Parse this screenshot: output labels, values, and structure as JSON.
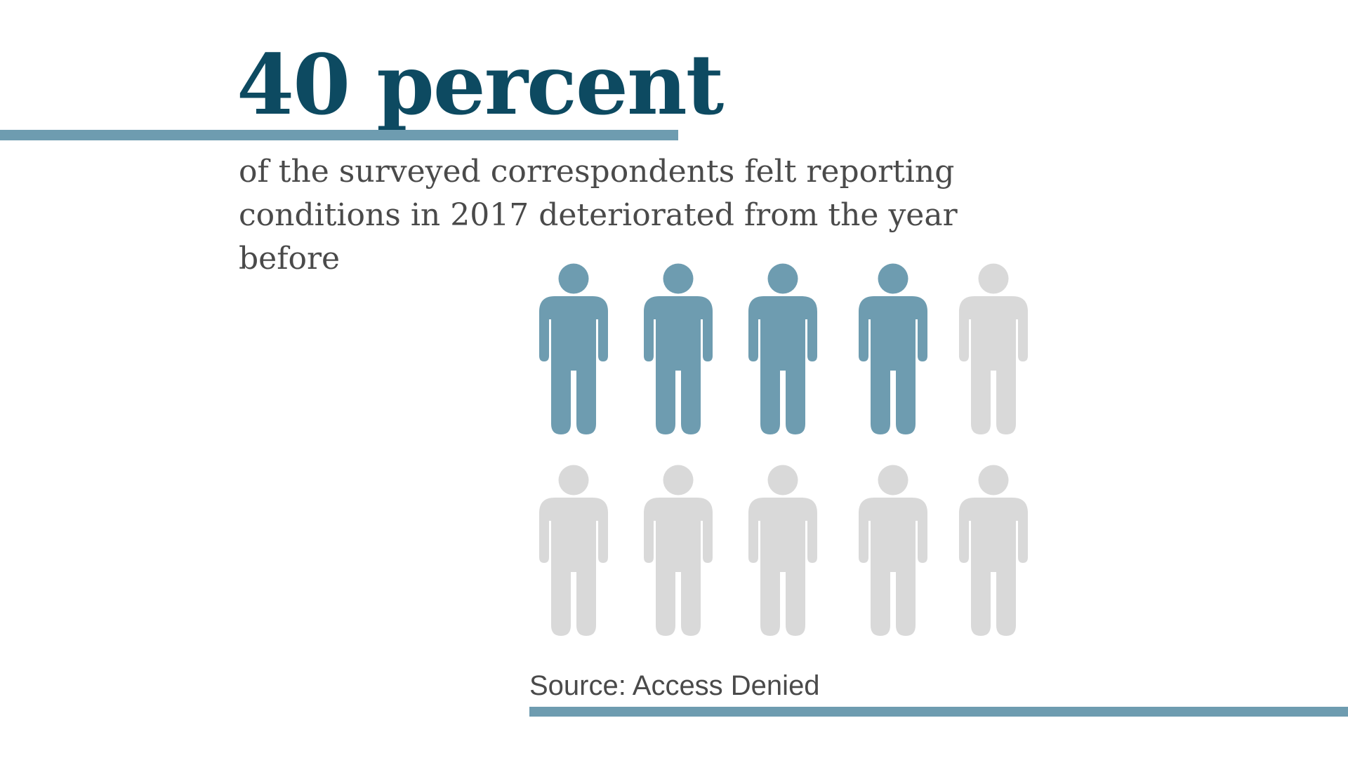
{
  "headline": "40 percent",
  "subtitle": "of the surveyed correspondents felt reporting conditions in 2017 deteriorated from the year before",
  "source": "Source: Access Denied",
  "colors": {
    "headline": "#0d4a61",
    "accent": "#6e9cb0",
    "inactive": "#d9d9d9",
    "body_text": "#4a4a4a",
    "background": "#ffffff"
  },
  "chart_data": {
    "type": "pictogram",
    "icon": "person-icon",
    "total": 10,
    "highlighted": 4,
    "percent": 40,
    "rows": 2,
    "columns": 5
  }
}
